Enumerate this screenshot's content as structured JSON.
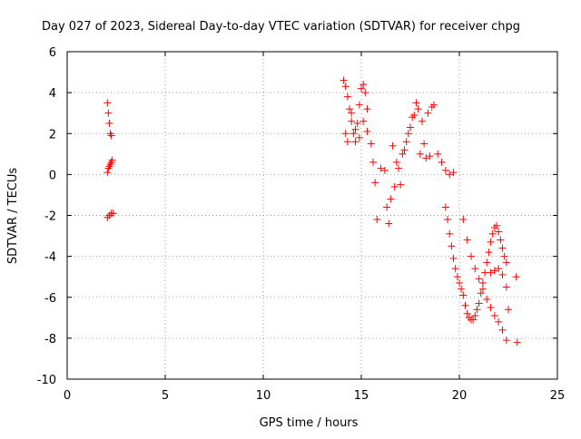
{
  "chart_data": {
    "type": "scatter",
    "title": "Day 027 of 2023, Sidereal Day-to-day VTEC variation (SDTVAR) for receiver chpg",
    "xlabel": "GPS time / hours",
    "ylabel": "SDTVAR / TECUs",
    "xlim": [
      0,
      25
    ],
    "ylim": [
      -10,
      6
    ],
    "xticks": [
      0,
      5,
      10,
      15,
      20,
      25
    ],
    "yticks": [
      -10,
      -8,
      -6,
      -4,
      -2,
      0,
      2,
      4,
      6
    ],
    "grid": true,
    "marker": "+",
    "color": "#ff0000",
    "series": [
      {
        "name": "SDTVAR",
        "x": [
          2.05,
          2.1,
          2.15,
          2.2,
          2.25,
          2.05,
          2.1,
          2.15,
          2.2,
          2.25,
          2.3,
          2.05,
          2.15,
          2.25,
          2.35,
          14.1,
          14.2,
          14.3,
          14.4,
          14.5,
          14.6,
          14.7,
          14.8,
          14.9,
          15.0,
          15.1,
          15.2,
          15.3,
          14.2,
          14.3,
          14.5,
          14.7,
          14.9,
          15.1,
          15.3,
          15.5,
          15.6,
          15.7,
          15.8,
          16.0,
          16.2,
          16.4,
          16.6,
          16.8,
          17.0,
          17.2,
          17.4,
          17.6,
          17.8,
          16.3,
          16.5,
          16.7,
          16.9,
          17.1,
          17.3,
          17.5,
          17.7,
          17.9,
          18.1,
          18.3,
          18.5,
          18.7,
          18.0,
          18.2,
          18.4,
          18.6,
          18.9,
          19.1,
          19.3,
          19.5,
          19.7,
          19.3,
          19.4,
          19.5,
          19.6,
          19.7,
          19.8,
          19.9,
          20.0,
          20.1,
          20.2,
          20.3,
          20.4,
          20.5,
          20.6,
          20.7,
          20.8,
          20.9,
          21.0,
          21.1,
          21.2,
          21.3,
          21.4,
          21.5,
          21.6,
          21.7,
          21.8,
          21.9,
          22.0,
          22.1,
          22.2,
          22.3,
          22.4,
          22.5,
          20.2,
          20.4,
          20.6,
          20.8,
          21.0,
          21.2,
          21.4,
          21.6,
          21.8,
          22.0,
          22.2,
          22.4,
          21.6,
          21.8,
          22.0,
          22.2,
          22.4,
          22.9,
          22.95
        ],
        "y": [
          3.5,
          3.0,
          2.5,
          2.0,
          1.9,
          0.1,
          0.3,
          0.4,
          0.5,
          0.6,
          0.7,
          -2.1,
          -2.0,
          -1.9,
          -1.9,
          4.6,
          4.3,
          3.8,
          3.2,
          2.6,
          2.0,
          1.6,
          2.5,
          3.4,
          4.2,
          4.4,
          4.0,
          3.2,
          2.0,
          1.6,
          3.0,
          2.2,
          1.8,
          2.6,
          2.1,
          1.5,
          0.6,
          -0.4,
          -2.2,
          0.3,
          0.2,
          -2.4,
          1.4,
          0.6,
          -0.5,
          1.2,
          2.0,
          2.8,
          3.5,
          -1.6,
          -1.2,
          -0.6,
          0.3,
          1.0,
          1.6,
          2.3,
          2.9,
          3.2,
          2.6,
          0.8,
          0.9,
          3.4,
          1.0,
          1.5,
          3.0,
          3.3,
          1.0,
          0.6,
          0.2,
          0.0,
          0.1,
          -1.6,
          -2.2,
          -2.9,
          -3.5,
          -4.1,
          -4.6,
          -5.0,
          -5.3,
          -5.6,
          -5.9,
          -6.4,
          -6.8,
          -7.0,
          -7.1,
          -7.1,
          -6.9,
          -6.6,
          -6.3,
          -5.8,
          -5.3,
          -4.8,
          -4.3,
          -3.8,
          -3.3,
          -2.9,
          -2.6,
          -2.5,
          -2.8,
          -3.2,
          -3.6,
          -4.0,
          -4.3,
          -6.6,
          -2.2,
          -3.2,
          -4.0,
          -4.6,
          -5.1,
          -5.6,
          -6.1,
          -6.5,
          -6.9,
          -7.2,
          -7.6,
          -8.1,
          -4.8,
          -4.7,
          -4.6,
          -4.9,
          -5.5,
          -5.0,
          -8.2
        ]
      }
    ]
  }
}
